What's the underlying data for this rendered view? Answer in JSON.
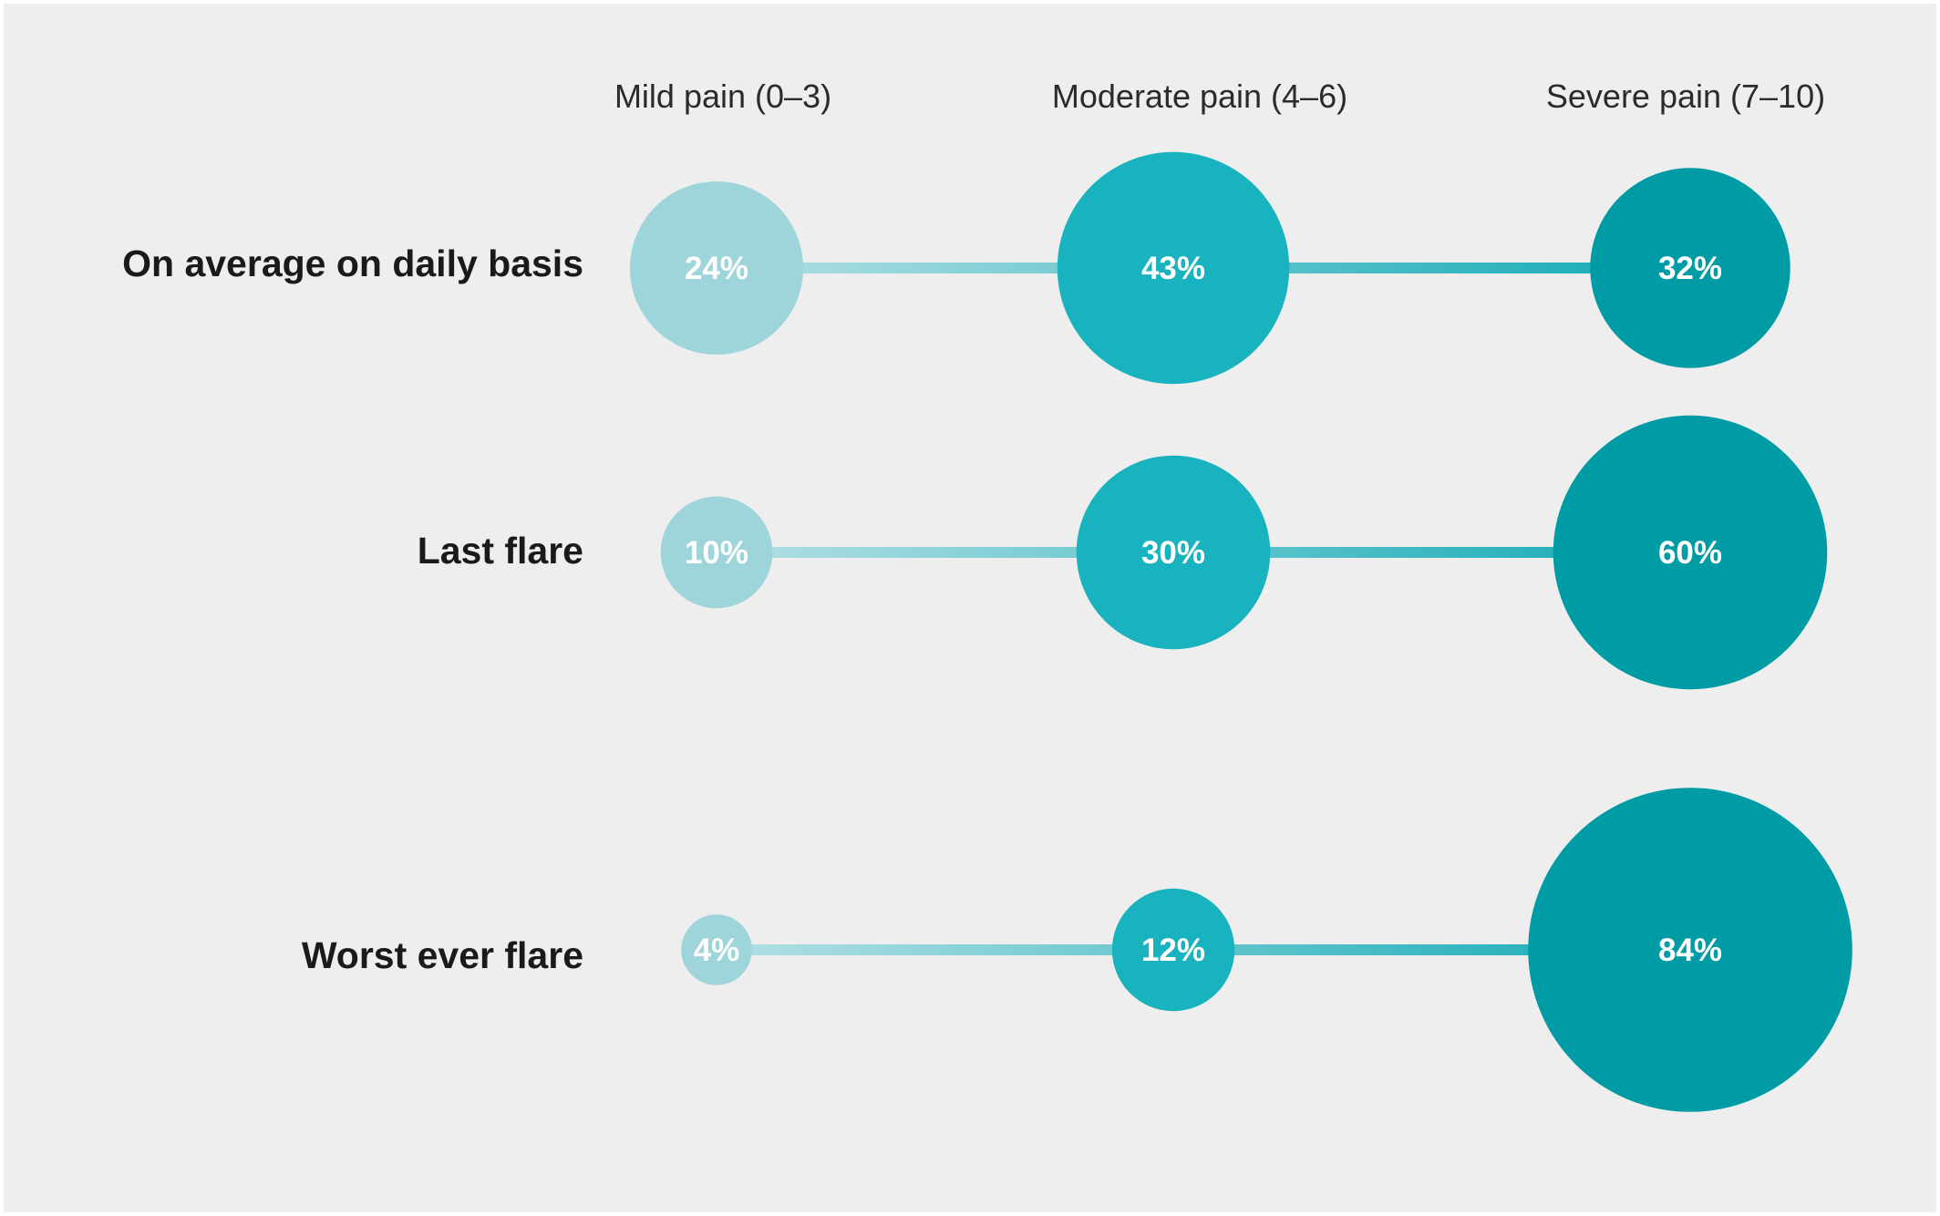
{
  "chart_data": {
    "type": "bubble",
    "columns": [
      "Mild pain (0–3)",
      "Moderate pain (4–6)",
      "Severe pain (7–10)"
    ],
    "rows": [
      "On average on daily basis",
      "Last flare",
      "Worst ever flare"
    ],
    "series": [
      {
        "row": "On average on daily basis",
        "values": [
          24,
          43,
          32
        ],
        "labels": [
          "24%",
          "43%",
          "32%"
        ]
      },
      {
        "row": "Last flare",
        "values": [
          10,
          30,
          60
        ],
        "labels": [
          "10%",
          "30%",
          "60%"
        ]
      },
      {
        "row": "Worst ever flare",
        "values": [
          4,
          12,
          84
        ],
        "labels": [
          "4%",
          "12%",
          "84%"
        ]
      }
    ],
    "unit": "%",
    "colors": {
      "mild": "#9dd5db",
      "moderate": "#18b3be",
      "severe": "#009ca6",
      "connector_start": "#b3e0e4",
      "connector_end": "#12aab5"
    }
  }
}
